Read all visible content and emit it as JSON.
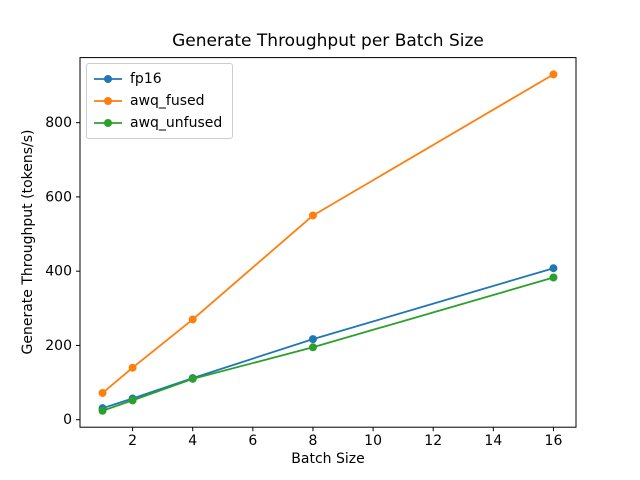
{
  "chart_data": {
    "type": "line",
    "title": "Generate Throughput per Batch Size",
    "xlabel": "Batch Size",
    "ylabel": "Generate Throughput (tokens/s)",
    "x": [
      1,
      2,
      4,
      8,
      16
    ],
    "series": [
      {
        "name": "fp16",
        "color": "#1f77b4",
        "values": [
          31,
          57,
          112,
          217,
          408
        ]
      },
      {
        "name": "awq_fused",
        "color": "#ff7f0e",
        "values": [
          72,
          140,
          270,
          550,
          930
        ]
      },
      {
        "name": "awq_unfused",
        "color": "#2ca02c",
        "values": [
          24,
          52,
          110,
          195,
          383
        ]
      }
    ],
    "xticks": [
      2,
      4,
      6,
      8,
      10,
      12,
      14,
      16
    ],
    "yticks": [
      0,
      200,
      400,
      600,
      800
    ],
    "xlim": [
      0.25,
      16.75
    ],
    "ylim": [
      -20.25,
      975.25
    ],
    "grid": false,
    "marker": "circle",
    "legend": {
      "position": "upper-left",
      "entries": [
        "fp16",
        "awq_fused",
        "awq_unfused"
      ]
    },
    "axis_color": "#000000",
    "background_color": "#ffffff"
  }
}
